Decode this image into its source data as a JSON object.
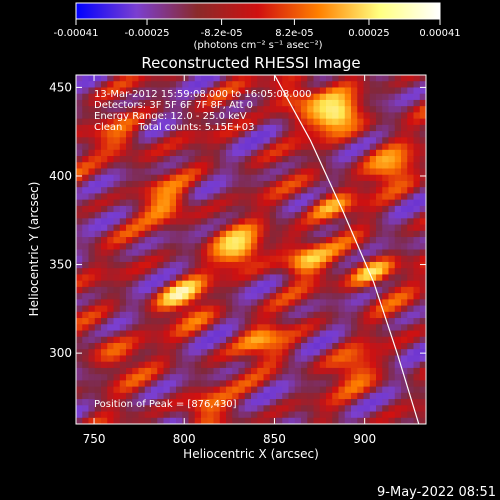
{
  "chart_data": {
    "type": "heatmap",
    "title": "Reconstructed RHESSI Image",
    "xlabel": "Heliocentric X (arcsec)",
    "ylabel": "Heliocentric Y (arcsec)",
    "xlim": [
      740,
      934
    ],
    "ylim": [
      260,
      457
    ],
    "x_ticks": [
      750,
      800,
      850,
      900
    ],
    "y_ticks": [
      300,
      350,
      400,
      450
    ],
    "colorbar": {
      "range": [
        -0.00041,
        0.00041
      ],
      "tick_values": [
        -0.00041,
        -0.00025,
        -8.2e-05,
        8.2e-05,
        0.00025,
        0.00041
      ],
      "tick_labels": [
        "-0.00041",
        "-0.00025",
        "-8.2e-05",
        "8.2e-05",
        "0.00025",
        "0.00041"
      ],
      "units_label": "(photons cm⁻² s⁻¹ asec⁻²)",
      "colormap": [
        "#0000ff",
        "#7b3fd0",
        "#8a2a2a",
        "#d01010",
        "#ff8000",
        "#ffff80",
        "#ffffff"
      ]
    },
    "annotations": {
      "time": "13-Mar-2012 15:59:08.000 to 16:05:08.000",
      "detectors": "Detectors: 3F 5F 6F 7F 8F, Att 0",
      "energy": "Energy Range: 12.0 - 25.0 keV",
      "algorithm": "Clean     Total counts: 5.15E+03",
      "peak": "Position of Peak = [876,430]"
    },
    "limb_curve": [
      [
        850,
        457
      ],
      [
        870,
        420
      ],
      [
        888,
        380
      ],
      [
        905,
        340
      ],
      [
        918,
        300
      ],
      [
        930,
        260
      ]
    ],
    "emission_blobs": [
      {
        "x": 885,
        "y": 435,
        "amp": 1.0
      },
      {
        "x": 860,
        "y": 445,
        "amp": 0.55
      },
      {
        "x": 830,
        "y": 360,
        "amp": 0.85
      },
      {
        "x": 800,
        "y": 330,
        "amp": 0.75
      },
      {
        "x": 865,
        "y": 355,
        "amp": 0.7
      },
      {
        "x": 905,
        "y": 345,
        "amp": 0.65
      },
      {
        "x": 790,
        "y": 385,
        "amp": 0.55
      },
      {
        "x": 915,
        "y": 405,
        "amp": 0.6
      },
      {
        "x": 760,
        "y": 300,
        "amp": 0.5
      },
      {
        "x": 845,
        "y": 305,
        "amp": 0.55
      },
      {
        "x": 895,
        "y": 290,
        "amp": 0.45
      },
      {
        "x": 765,
        "y": 420,
        "amp": 0.45
      },
      {
        "x": 880,
        "y": 385,
        "amp": 0.5
      },
      {
        "x": 810,
        "y": 270,
        "amp": 0.4
      }
    ]
  },
  "footer": {
    "date": "9-May-2022 08:51"
  }
}
